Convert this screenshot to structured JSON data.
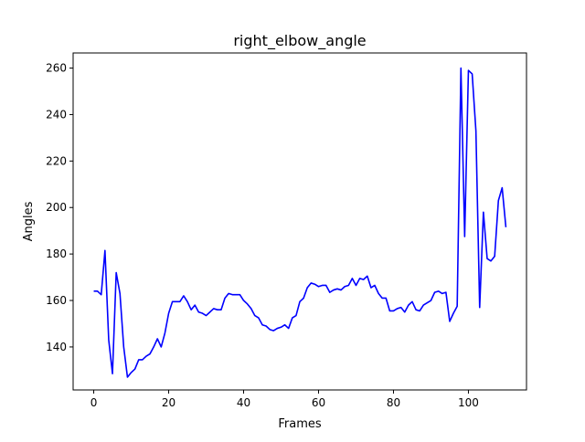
{
  "chart_data": {
    "type": "line",
    "title": "right_elbow_angle",
    "xlabel": "Frames",
    "ylabel": "Angles",
    "xlim": [
      -5.5,
      115.5
    ],
    "ylim": [
      121.5,
      266.5
    ],
    "x_ticks": [
      0,
      20,
      40,
      60,
      80,
      100
    ],
    "y_ticks": [
      140,
      160,
      180,
      200,
      220,
      240,
      260
    ],
    "grid": false,
    "legend": "none",
    "series": [
      {
        "color": "#0000ff",
        "x": [
          0,
          1,
          2,
          3,
          4,
          5,
          6,
          7,
          8,
          9,
          10,
          11,
          12,
          13,
          14,
          15,
          16,
          17,
          18,
          19,
          20,
          21,
          22,
          23,
          24,
          25,
          26,
          27,
          28,
          29,
          30,
          31,
          32,
          33,
          34,
          35,
          36,
          37,
          38,
          39,
          40,
          41,
          42,
          43,
          44,
          45,
          46,
          47,
          48,
          49,
          50,
          51,
          52,
          53,
          54,
          55,
          56,
          57,
          58,
          59,
          60,
          61,
          62,
          63,
          64,
          65,
          66,
          67,
          68,
          69,
          70,
          71,
          72,
          73,
          74,
          75,
          76,
          77,
          78,
          79,
          80,
          81,
          82,
          83,
          84,
          85,
          86,
          87,
          88,
          89,
          90,
          91,
          92,
          93,
          94,
          95,
          96,
          97,
          98,
          99,
          100,
          101,
          102,
          103,
          104,
          105,
          106,
          107,
          108,
          109,
          110
        ],
        "values": [
          164,
          164,
          162.5,
          181.5,
          143,
          128.5,
          172,
          163,
          140,
          127,
          129,
          130.5,
          134.5,
          134.5,
          136,
          137,
          140,
          143.5,
          140,
          146,
          154.5,
          159.5,
          159.5,
          159.5,
          162,
          159.5,
          156,
          158,
          155,
          154.5,
          153.5,
          155,
          156.5,
          156,
          156,
          161,
          163,
          162.5,
          162.5,
          162.5,
          160,
          158.5,
          156.5,
          153.5,
          152.5,
          149.5,
          149,
          147.5,
          147,
          148,
          148.5,
          149.5,
          148,
          152.5,
          153.5,
          159.5,
          161,
          165.5,
          167.5,
          167,
          166,
          166.5,
          166.5,
          163.5,
          164.5,
          165,
          164.5,
          166,
          166.5,
          169.5,
          166.5,
          169.5,
          169,
          170.5,
          165.5,
          166.5,
          163,
          161,
          161,
          155.5,
          155.5,
          156.5,
          157,
          155,
          158,
          159.5,
          156,
          155.5,
          158,
          159,
          160,
          163.5,
          164,
          163,
          163.5,
          151,
          154.5,
          157.5,
          260,
          187.5,
          259,
          257.5,
          233,
          157,
          198,
          178,
          177,
          179,
          203,
          208.5,
          191.5
        ]
      }
    ]
  }
}
